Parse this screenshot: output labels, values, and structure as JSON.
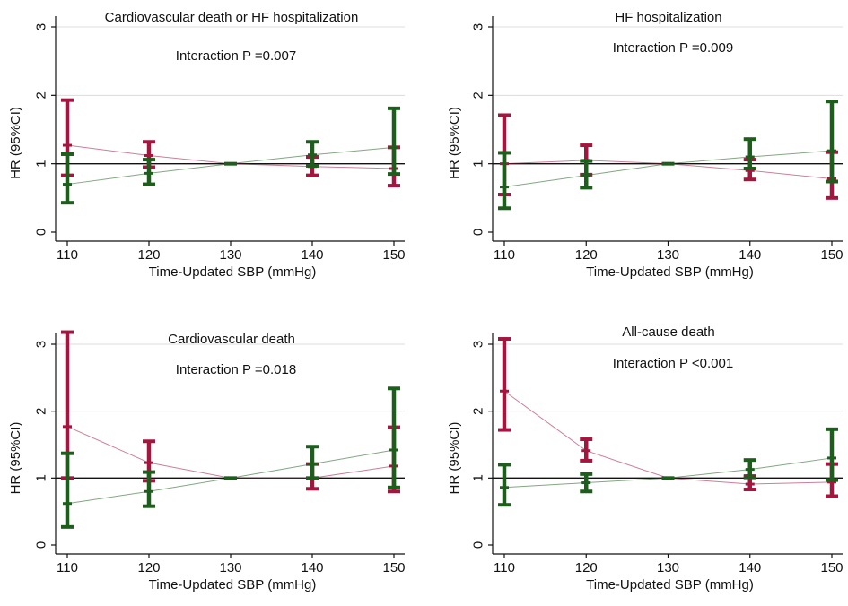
{
  "colors": {
    "red": "#a3163f",
    "green": "#1d5e1d",
    "refline": "#111111",
    "grid": "#dcdcdc"
  },
  "chart_data": [
    {
      "type": "errorbar",
      "title": "Cardiovascular death or HF hospitalization",
      "annotation": "Interaction P =0.007",
      "xlabel": "Time-Updated SBP (mmHg)",
      "ylabel": "HR (95%CI)",
      "x": [
        110,
        120,
        130,
        140,
        150
      ],
      "xlim": [
        110,
        150
      ],
      "ylim": [
        0,
        3
      ],
      "xticks": [
        110,
        120,
        130,
        140,
        150
      ],
      "yticks": [
        0,
        1,
        2,
        3
      ],
      "refline": 1,
      "grid": true,
      "series": [
        {
          "color": "red",
          "hr": [
            1.27,
            1.12,
            1.0,
            0.96,
            0.93
          ],
          "lower": [
            0.83,
            0.95,
            1.0,
            0.83,
            0.68
          ],
          "upper": [
            1.93,
            1.32,
            1.0,
            1.1,
            1.24
          ]
        },
        {
          "color": "green",
          "hr": [
            0.7,
            0.86,
            1.0,
            1.13,
            1.24
          ],
          "lower": [
            0.43,
            0.7,
            1.0,
            0.97,
            0.85
          ],
          "upper": [
            1.14,
            1.06,
            1.0,
            1.32,
            1.81
          ]
        }
      ]
    },
    {
      "type": "errorbar",
      "title": "HF hospitalization",
      "annotation": "Interaction P =0.009",
      "xlabel": "Time-Updated SBP (mmHg)",
      "ylabel": "HR (95%CI)",
      "x": [
        110,
        120,
        130,
        140,
        150
      ],
      "xlim": [
        110,
        150
      ],
      "ylim": [
        0,
        3
      ],
      "xticks": [
        110,
        120,
        130,
        140,
        150
      ],
      "yticks": [
        0,
        1,
        2,
        3
      ],
      "refline": 1,
      "grid": true,
      "series": [
        {
          "color": "red",
          "hr": [
            1.0,
            1.05,
            1.0,
            0.9,
            0.78
          ],
          "lower": [
            0.55,
            0.84,
            1.0,
            0.77,
            0.5
          ],
          "upper": [
            1.71,
            1.27,
            1.0,
            1.06,
            1.17
          ]
        },
        {
          "color": "green",
          "hr": [
            0.66,
            0.83,
            1.0,
            1.1,
            1.19
          ],
          "lower": [
            0.35,
            0.65,
            1.0,
            0.93,
            0.74
          ],
          "upper": [
            1.16,
            1.04,
            1.0,
            1.36,
            1.91
          ]
        }
      ]
    },
    {
      "type": "errorbar",
      "title": "Cardiovascular death",
      "annotation": "Interaction P =0.018",
      "xlabel": "Time-Updated SBP (mmHg)",
      "ylabel": "HR (95%CI)",
      "x": [
        110,
        120,
        130,
        140,
        150
      ],
      "xlim": [
        110,
        150
      ],
      "ylim": [
        0,
        3
      ],
      "xticks": [
        110,
        120,
        130,
        140,
        150
      ],
      "yticks": [
        0,
        1,
        2,
        3
      ],
      "refline": 1,
      "grid": true,
      "series": [
        {
          "color": "red",
          "hr": [
            1.77,
            1.23,
            1.0,
            1.0,
            1.18
          ],
          "lower": [
            1.0,
            0.96,
            1.0,
            0.84,
            0.8
          ],
          "upper": [
            3.18,
            1.55,
            1.0,
            1.21,
            1.76
          ]
        },
        {
          "color": "green",
          "hr": [
            0.62,
            0.8,
            1.0,
            1.21,
            1.42
          ],
          "lower": [
            0.27,
            0.58,
            1.0,
            1.0,
            0.86
          ],
          "upper": [
            1.37,
            1.09,
            1.0,
            1.47,
            2.34
          ]
        }
      ]
    },
    {
      "type": "errorbar",
      "title": "All-cause death",
      "annotation": "Interaction P <0.001",
      "xlabel": "Time-Updated SBP (mmHg)",
      "ylabel": "HR (95%CI)",
      "x": [
        110,
        120,
        130,
        140,
        150
      ],
      "xlim": [
        110,
        150
      ],
      "ylim": [
        0,
        3
      ],
      "xticks": [
        110,
        120,
        130,
        140,
        150
      ],
      "yticks": [
        0,
        1,
        2,
        3
      ],
      "refline": 1,
      "grid": true,
      "series": [
        {
          "color": "red",
          "hr": [
            2.3,
            1.41,
            1.0,
            0.91,
            0.94
          ],
          "lower": [
            1.72,
            1.26,
            1.0,
            0.83,
            0.73
          ],
          "upper": [
            3.08,
            1.58,
            1.0,
            1.03,
            1.21
          ]
        },
        {
          "color": "green",
          "hr": [
            0.86,
            0.93,
            1.0,
            1.13,
            1.3
          ],
          "lower": [
            0.6,
            0.8,
            1.0,
            1.01,
            0.97
          ],
          "upper": [
            1.2,
            1.06,
            1.0,
            1.27,
            1.73
          ]
        }
      ]
    }
  ]
}
